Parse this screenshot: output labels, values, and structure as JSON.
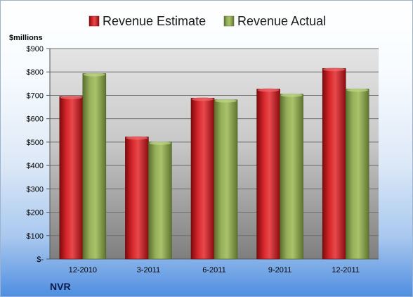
{
  "chart_data": {
    "type": "bar",
    "categories": [
      "12-2010",
      "3-2011",
      "6-2011",
      "9-2011",
      "12-2011"
    ],
    "series": [
      {
        "name": "Revenue Estimate",
        "values": [
          695,
          522,
          688,
          727,
          815
        ],
        "color": "#c0161b"
      },
      {
        "name": "Revenue Actual",
        "values": [
          793,
          500,
          681,
          705,
          727
        ],
        "color": "#8fa84e"
      }
    ],
    "ylabel": "$millions",
    "ylim": [
      0,
      900
    ],
    "yticks": [
      0,
      100,
      200,
      300,
      400,
      500,
      600,
      700,
      800,
      900
    ],
    "ytick_labels": [
      "$-",
      "$100",
      "$200",
      "$300",
      "$400",
      "$500",
      "$600",
      "$700",
      "$800",
      "$900"
    ],
    "grid": true,
    "legend_position": "top"
  },
  "footer": {
    "company": "NVR"
  }
}
